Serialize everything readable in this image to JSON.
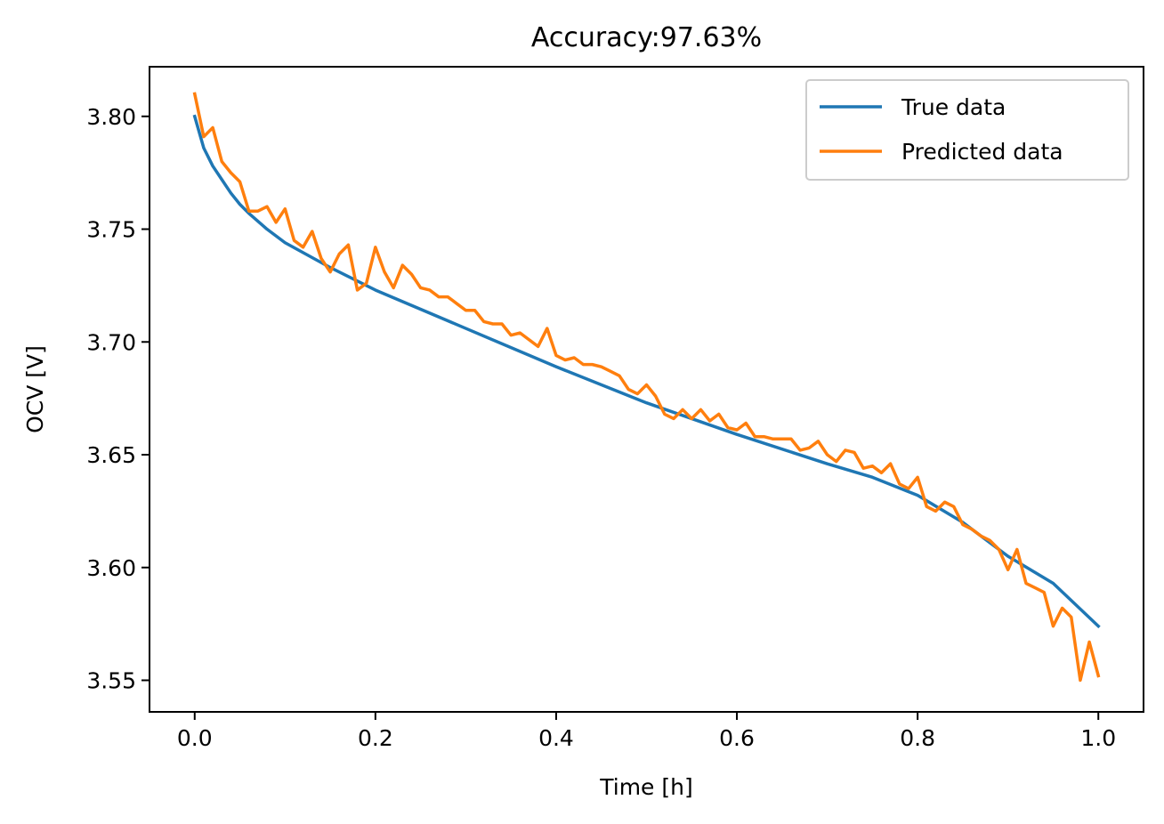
{
  "chart_data": {
    "type": "line",
    "title": "Accuracy:97.63%",
    "xlabel": "Time [h]",
    "ylabel": "OCV [V]",
    "xlim": [
      -0.05,
      1.05
    ],
    "ylim": [
      3.536,
      3.822
    ],
    "xticks": [
      0.0,
      0.2,
      0.4,
      0.6,
      0.8,
      1.0
    ],
    "xtick_labels": [
      "0.0",
      "0.2",
      "0.4",
      "0.6",
      "0.8",
      "1.0"
    ],
    "yticks": [
      3.55,
      3.6,
      3.65,
      3.7,
      3.75,
      3.8
    ],
    "ytick_labels": [
      "3.55",
      "3.60",
      "3.65",
      "3.70",
      "3.75",
      "3.80"
    ],
    "grid": false,
    "legend_position": "top-right",
    "series": [
      {
        "name": "True data",
        "color": "#1f77b4",
        "x": [
          0.0,
          0.01,
          0.02,
          0.03,
          0.04,
          0.05,
          0.06,
          0.08,
          0.1,
          0.15,
          0.2,
          0.3,
          0.4,
          0.5,
          0.6,
          0.7,
          0.75,
          0.8,
          0.85,
          0.9,
          0.95,
          1.0
        ],
        "y": [
          3.8,
          3.786,
          3.778,
          3.772,
          3.766,
          3.761,
          3.757,
          3.75,
          3.744,
          3.733,
          3.723,
          3.706,
          3.689,
          3.673,
          3.659,
          3.646,
          3.64,
          3.632,
          3.62,
          3.605,
          3.593,
          3.574
        ]
      },
      {
        "name": "Predicted data",
        "color": "#ff7f0e",
        "x": [
          0.0,
          0.01,
          0.02,
          0.03,
          0.04,
          0.05,
          0.06,
          0.07,
          0.08,
          0.09,
          0.1,
          0.11,
          0.12,
          0.13,
          0.14,
          0.15,
          0.16,
          0.17,
          0.18,
          0.19,
          0.2,
          0.21,
          0.22,
          0.23,
          0.24,
          0.25,
          0.26,
          0.27,
          0.28,
          0.29,
          0.3,
          0.31,
          0.32,
          0.33,
          0.34,
          0.35,
          0.36,
          0.37,
          0.38,
          0.39,
          0.4,
          0.41,
          0.42,
          0.43,
          0.44,
          0.45,
          0.46,
          0.47,
          0.48,
          0.49,
          0.5,
          0.51,
          0.52,
          0.53,
          0.54,
          0.55,
          0.56,
          0.57,
          0.58,
          0.59,
          0.6,
          0.61,
          0.62,
          0.63,
          0.64,
          0.65,
          0.66,
          0.67,
          0.68,
          0.69,
          0.7,
          0.71,
          0.72,
          0.73,
          0.74,
          0.75,
          0.76,
          0.77,
          0.78,
          0.79,
          0.8,
          0.81,
          0.82,
          0.83,
          0.84,
          0.85,
          0.86,
          0.87,
          0.88,
          0.89,
          0.9,
          0.91,
          0.92,
          0.93,
          0.94,
          0.95,
          0.96,
          0.97,
          0.98,
          0.99,
          1.0
        ],
        "y": [
          3.81,
          3.791,
          3.795,
          3.78,
          3.775,
          3.771,
          3.758,
          3.758,
          3.76,
          3.753,
          3.759,
          3.745,
          3.742,
          3.749,
          3.737,
          3.731,
          3.739,
          3.743,
          3.723,
          3.726,
          3.742,
          3.731,
          3.724,
          3.734,
          3.73,
          3.724,
          3.723,
          3.72,
          3.72,
          3.717,
          3.714,
          3.714,
          3.709,
          3.708,
          3.708,
          3.703,
          3.704,
          3.701,
          3.698,
          3.706,
          3.694,
          3.692,
          3.693,
          3.69,
          3.69,
          3.689,
          3.687,
          3.685,
          3.679,
          3.677,
          3.681,
          3.676,
          3.668,
          3.666,
          3.67,
          3.666,
          3.67,
          3.665,
          3.668,
          3.662,
          3.661,
          3.664,
          3.658,
          3.658,
          3.657,
          3.657,
          3.657,
          3.652,
          3.653,
          3.656,
          3.65,
          3.647,
          3.652,
          3.651,
          3.644,
          3.645,
          3.642,
          3.646,
          3.637,
          3.635,
          3.64,
          3.627,
          3.625,
          3.629,
          3.627,
          3.619,
          3.617,
          3.614,
          3.612,
          3.608,
          3.599,
          3.608,
          3.593,
          3.591,
          3.589,
          3.574,
          3.582,
          3.578,
          3.55,
          3.567,
          3.552
        ]
      }
    ]
  }
}
